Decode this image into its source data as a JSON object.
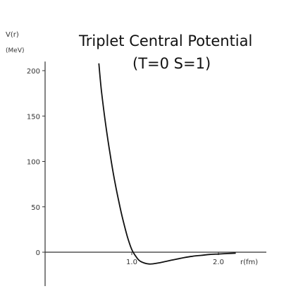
{
  "chart_data": {
    "type": "line",
    "title": "Triplet Central Potential",
    "subtitle": "(T=0   S=1)",
    "ylabel": "V(r)",
    "yunit": "(MeV)",
    "xlabel": "r(fm)",
    "xlim": [
      0.0,
      2.5
    ],
    "ylim": [
      -35,
      210
    ],
    "xticks": [
      1.0,
      2.0
    ],
    "xtick_labels": [
      "1.0",
      "2.0"
    ],
    "yticks": [
      0,
      50,
      100,
      150,
      200
    ],
    "ytick_labels": [
      "0",
      "50",
      "100",
      "150",
      "200"
    ],
    "grid": false,
    "line_color": "#111111",
    "series": [
      {
        "x": [
          0.62,
          0.65,
          0.7,
          0.75,
          0.8,
          0.85,
          0.9,
          0.95,
          1.0,
          1.05,
          1.1,
          1.2,
          1.3,
          1.4,
          1.5,
          1.6,
          1.7,
          1.8,
          1.9,
          2.0,
          2.1,
          2.2
        ],
        "y": [
          208,
          178,
          140,
          108,
          80,
          56,
          35,
          17,
          3,
          -5,
          -10,
          -13,
          -12,
          -10,
          -8,
          -6,
          -4.5,
          -3.5,
          -2.5,
          -2,
          -1.5,
          -1
        ]
      }
    ]
  }
}
